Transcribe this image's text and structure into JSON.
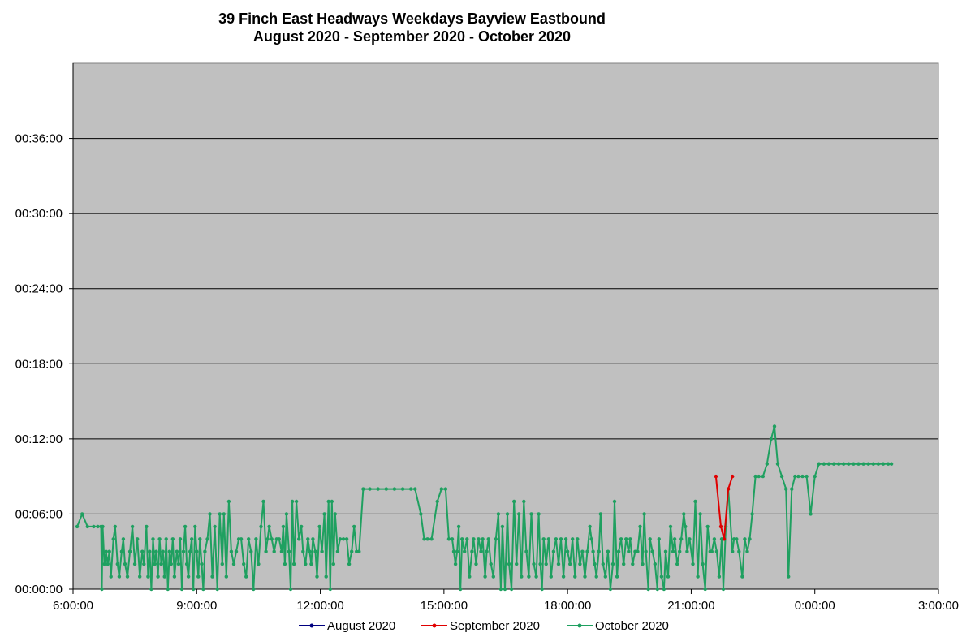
{
  "chart_data": {
    "type": "line",
    "title": "39 Finch East Headways Weekdays Bayview Eastbound",
    "subtitle": "August 2020 - September 2020 - October 2020",
    "xlabel": "",
    "ylabel": "",
    "x_unit": "time of day (hours since 6:00:00)",
    "y_unit": "headway (minutes)",
    "xlim": [
      0,
      21
    ],
    "ylim": [
      0,
      42
    ],
    "x_ticks": [
      "6:00:00",
      "9:00:00",
      "12:00:00",
      "15:00:00",
      "18:00:00",
      "21:00:00",
      "0:00:00",
      "3:00:00"
    ],
    "y_ticks": [
      "00:00:00",
      "00:06:00",
      "00:12:00",
      "00:18:00",
      "00:24:00",
      "00:30:00",
      "00:36:00"
    ],
    "grid": "horizontal",
    "plot_background": "#c0c0c0",
    "legend_position": "bottom",
    "series": [
      {
        "name": "August 2020",
        "color": "#000080",
        "points": []
      },
      {
        "name": "September 2020",
        "color": "#e00000",
        "points": [
          [
            15.6,
            9
          ],
          [
            15.72,
            5
          ],
          [
            15.8,
            4
          ],
          [
            15.9,
            8
          ],
          [
            16.0,
            9
          ]
        ]
      },
      {
        "name": "October 2020",
        "color": "#1fa060",
        "points": [
          [
            0.1,
            5
          ],
          [
            0.22,
            6
          ],
          [
            0.35,
            5
          ],
          [
            0.5,
            5
          ],
          [
            0.6,
            5
          ],
          [
            0.68,
            5
          ],
          [
            0.7,
            0
          ],
          [
            0.72,
            5
          ],
          [
            0.76,
            2
          ],
          [
            0.8,
            3
          ],
          [
            0.84,
            2
          ],
          [
            0.88,
            3
          ],
          [
            0.92,
            1
          ],
          [
            0.98,
            4
          ],
          [
            1.02,
            5
          ],
          [
            1.08,
            2
          ],
          [
            1.12,
            1
          ],
          [
            1.18,
            3
          ],
          [
            1.22,
            4
          ],
          [
            1.26,
            2
          ],
          [
            1.32,
            1
          ],
          [
            1.38,
            3
          ],
          [
            1.44,
            5
          ],
          [
            1.5,
            2
          ],
          [
            1.56,
            4
          ],
          [
            1.62,
            1
          ],
          [
            1.68,
            3
          ],
          [
            1.72,
            2
          ],
          [
            1.78,
            5
          ],
          [
            1.82,
            1
          ],
          [
            1.86,
            3
          ],
          [
            1.9,
            0
          ],
          [
            1.94,
            4
          ],
          [
            1.98,
            2
          ],
          [
            2.02,
            3
          ],
          [
            2.06,
            1
          ],
          [
            2.1,
            4
          ],
          [
            2.14,
            2
          ],
          [
            2.18,
            3
          ],
          [
            2.22,
            1
          ],
          [
            2.26,
            4
          ],
          [
            2.3,
            0
          ],
          [
            2.34,
            3
          ],
          [
            2.38,
            2
          ],
          [
            2.42,
            4
          ],
          [
            2.46,
            1
          ],
          [
            2.52,
            3
          ],
          [
            2.56,
            2
          ],
          [
            2.6,
            4
          ],
          [
            2.64,
            0
          ],
          [
            2.68,
            3
          ],
          [
            2.72,
            5
          ],
          [
            2.76,
            2
          ],
          [
            2.8,
            1
          ],
          [
            2.84,
            3
          ],
          [
            2.88,
            4
          ],
          [
            2.92,
            0
          ],
          [
            2.96,
            5
          ],
          [
            3.0,
            3
          ],
          [
            3.04,
            1
          ],
          [
            3.08,
            4
          ],
          [
            3.12,
            2
          ],
          [
            3.16,
            0
          ],
          [
            3.2,
            3
          ],
          [
            3.26,
            4
          ],
          [
            3.32,
            6
          ],
          [
            3.38,
            1
          ],
          [
            3.44,
            5
          ],
          [
            3.5,
            0
          ],
          [
            3.56,
            6
          ],
          [
            3.62,
            2
          ],
          [
            3.66,
            6
          ],
          [
            3.72,
            1
          ],
          [
            3.78,
            7
          ],
          [
            3.84,
            3
          ],
          [
            3.9,
            2
          ],
          [
            3.96,
            3
          ],
          [
            4.02,
            4
          ],
          [
            4.08,
            4
          ],
          [
            4.14,
            2
          ],
          [
            4.2,
            1
          ],
          [
            4.26,
            4
          ],
          [
            4.32,
            3
          ],
          [
            4.38,
            0
          ],
          [
            4.44,
            4
          ],
          [
            4.5,
            2
          ],
          [
            4.56,
            5
          ],
          [
            4.62,
            7
          ],
          [
            4.68,
            3
          ],
          [
            4.72,
            4
          ],
          [
            4.76,
            5
          ],
          [
            4.82,
            4
          ],
          [
            4.88,
            3
          ],
          [
            4.94,
            4
          ],
          [
            5.0,
            4
          ],
          [
            5.06,
            3
          ],
          [
            5.1,
            5
          ],
          [
            5.14,
            2
          ],
          [
            5.18,
            6
          ],
          [
            5.24,
            3
          ],
          [
            5.28,
            0
          ],
          [
            5.32,
            7
          ],
          [
            5.36,
            2
          ],
          [
            5.42,
            7
          ],
          [
            5.48,
            4
          ],
          [
            5.54,
            5
          ],
          [
            5.58,
            3
          ],
          [
            5.64,
            2
          ],
          [
            5.7,
            4
          ],
          [
            5.74,
            3
          ],
          [
            5.78,
            2
          ],
          [
            5.82,
            4
          ],
          [
            5.88,
            3
          ],
          [
            5.92,
            1
          ],
          [
            5.98,
            5
          ],
          [
            6.04,
            3
          ],
          [
            6.1,
            6
          ],
          [
            6.14,
            1
          ],
          [
            6.2,
            7
          ],
          [
            6.24,
            0
          ],
          [
            6.28,
            7
          ],
          [
            6.32,
            2
          ],
          [
            6.36,
            6
          ],
          [
            6.42,
            3
          ],
          [
            6.48,
            4
          ],
          [
            6.56,
            4
          ],
          [
            6.64,
            4
          ],
          [
            6.7,
            2
          ],
          [
            6.76,
            3
          ],
          [
            6.82,
            5
          ],
          [
            6.88,
            3
          ],
          [
            6.94,
            3
          ],
          [
            7.04,
            8
          ],
          [
            7.2,
            8
          ],
          [
            7.4,
            8
          ],
          [
            7.6,
            8
          ],
          [
            7.8,
            8
          ],
          [
            8.0,
            8
          ],
          [
            8.2,
            8
          ],
          [
            8.3,
            8
          ],
          [
            8.44,
            6
          ],
          [
            8.52,
            4
          ],
          [
            8.6,
            4
          ],
          [
            8.7,
            4
          ],
          [
            8.84,
            7
          ],
          [
            8.94,
            8
          ],
          [
            9.04,
            8
          ],
          [
            9.12,
            4
          ],
          [
            9.2,
            4
          ],
          [
            9.24,
            3
          ],
          [
            9.28,
            2
          ],
          [
            9.32,
            3
          ],
          [
            9.36,
            5
          ],
          [
            9.4,
            0
          ],
          [
            9.44,
            4
          ],
          [
            9.5,
            3
          ],
          [
            9.56,
            4
          ],
          [
            9.62,
            1
          ],
          [
            9.68,
            3
          ],
          [
            9.72,
            4
          ],
          [
            9.78,
            2
          ],
          [
            9.84,
            4
          ],
          [
            9.9,
            3
          ],
          [
            9.94,
            4
          ],
          [
            10.0,
            1
          ],
          [
            10.04,
            3
          ],
          [
            10.08,
            4
          ],
          [
            10.14,
            2
          ],
          [
            10.2,
            1
          ],
          [
            10.26,
            4
          ],
          [
            10.32,
            6
          ],
          [
            10.38,
            0
          ],
          [
            10.42,
            5
          ],
          [
            10.48,
            0
          ],
          [
            10.54,
            6
          ],
          [
            10.58,
            2
          ],
          [
            10.64,
            0
          ],
          [
            10.7,
            7
          ],
          [
            10.76,
            2
          ],
          [
            10.82,
            6
          ],
          [
            10.88,
            1
          ],
          [
            10.94,
            7
          ],
          [
            11.0,
            3
          ],
          [
            11.06,
            1
          ],
          [
            11.12,
            6
          ],
          [
            11.18,
            2
          ],
          [
            11.24,
            1
          ],
          [
            11.3,
            6
          ],
          [
            11.34,
            2
          ],
          [
            11.38,
            0
          ],
          [
            11.42,
            4
          ],
          [
            11.48,
            2
          ],
          [
            11.54,
            4
          ],
          [
            11.6,
            1
          ],
          [
            11.66,
            3
          ],
          [
            11.72,
            4
          ],
          [
            11.78,
            2
          ],
          [
            11.84,
            4
          ],
          [
            11.9,
            1
          ],
          [
            11.96,
            4
          ],
          [
            12.0,
            3
          ],
          [
            12.06,
            2
          ],
          [
            12.12,
            4
          ],
          [
            12.18,
            1
          ],
          [
            12.24,
            4
          ],
          [
            12.3,
            2
          ],
          [
            12.36,
            3
          ],
          [
            12.42,
            1
          ],
          [
            12.48,
            3
          ],
          [
            12.54,
            5
          ],
          [
            12.58,
            4
          ],
          [
            12.62,
            3
          ],
          [
            12.66,
            2
          ],
          [
            12.7,
            1
          ],
          [
            12.76,
            3
          ],
          [
            12.8,
            6
          ],
          [
            12.86,
            2
          ],
          [
            12.92,
            1
          ],
          [
            12.98,
            3
          ],
          [
            13.04,
            0
          ],
          [
            13.1,
            2
          ],
          [
            13.14,
            7
          ],
          [
            13.2,
            1
          ],
          [
            13.24,
            3
          ],
          [
            13.3,
            4
          ],
          [
            13.36,
            2
          ],
          [
            13.42,
            4
          ],
          [
            13.48,
            3
          ],
          [
            13.52,
            4
          ],
          [
            13.58,
            2
          ],
          [
            13.64,
            3
          ],
          [
            13.7,
            3
          ],
          [
            13.76,
            5
          ],
          [
            13.82,
            2
          ],
          [
            13.86,
            6
          ],
          [
            13.9,
            3
          ],
          [
            13.96,
            0
          ],
          [
            14.0,
            4
          ],
          [
            14.06,
            3
          ],
          [
            14.12,
            2
          ],
          [
            14.18,
            0
          ],
          [
            14.22,
            4
          ],
          [
            14.28,
            1
          ],
          [
            14.34,
            0
          ],
          [
            14.38,
            3
          ],
          [
            14.44,
            1
          ],
          [
            14.5,
            5
          ],
          [
            14.56,
            3
          ],
          [
            14.6,
            4
          ],
          [
            14.66,
            2
          ],
          [
            14.72,
            3
          ],
          [
            14.76,
            4
          ],
          [
            14.82,
            6
          ],
          [
            14.86,
            5
          ],
          [
            14.9,
            3
          ],
          [
            14.96,
            4
          ],
          [
            15.04,
            2
          ],
          [
            15.1,
            7
          ],
          [
            15.16,
            1
          ],
          [
            15.22,
            6
          ],
          [
            15.28,
            2
          ],
          [
            15.34,
            0
          ],
          [
            15.4,
            5
          ],
          [
            15.46,
            3
          ],
          [
            15.5,
            3
          ],
          [
            15.56,
            4
          ],
          [
            15.62,
            3
          ],
          [
            15.68,
            1
          ],
          [
            15.74,
            4
          ],
          [
            15.78,
            0
          ],
          [
            15.84,
            5
          ],
          [
            15.9,
            8
          ],
          [
            16.0,
            3
          ],
          [
            16.04,
            4
          ],
          [
            16.1,
            4
          ],
          [
            16.16,
            3
          ],
          [
            16.24,
            1
          ],
          [
            16.3,
            4
          ],
          [
            16.36,
            3
          ],
          [
            16.42,
            4
          ],
          [
            16.48,
            6
          ],
          [
            16.56,
            9
          ],
          [
            16.64,
            9
          ],
          [
            16.74,
            9
          ],
          [
            16.84,
            10
          ],
          [
            16.94,
            12
          ],
          [
            17.02,
            13
          ],
          [
            17.1,
            10
          ],
          [
            17.2,
            9
          ],
          [
            17.3,
            8
          ],
          [
            17.36,
            1
          ],
          [
            17.44,
            8
          ],
          [
            17.52,
            9
          ],
          [
            17.6,
            9
          ],
          [
            17.7,
            9
          ],
          [
            17.8,
            9
          ],
          [
            17.9,
            6
          ],
          [
            18.0,
            9
          ],
          [
            18.1,
            10
          ],
          [
            18.22,
            10
          ],
          [
            18.34,
            10
          ],
          [
            18.46,
            10
          ],
          [
            18.58,
            10
          ],
          [
            18.7,
            10
          ],
          [
            18.82,
            10
          ],
          [
            18.94,
            10
          ],
          [
            19.06,
            10
          ],
          [
            19.18,
            10
          ],
          [
            19.3,
            10
          ],
          [
            19.42,
            10
          ],
          [
            19.54,
            10
          ],
          [
            19.66,
            10
          ],
          [
            19.78,
            10
          ],
          [
            19.86,
            10
          ]
        ]
      }
    ]
  }
}
